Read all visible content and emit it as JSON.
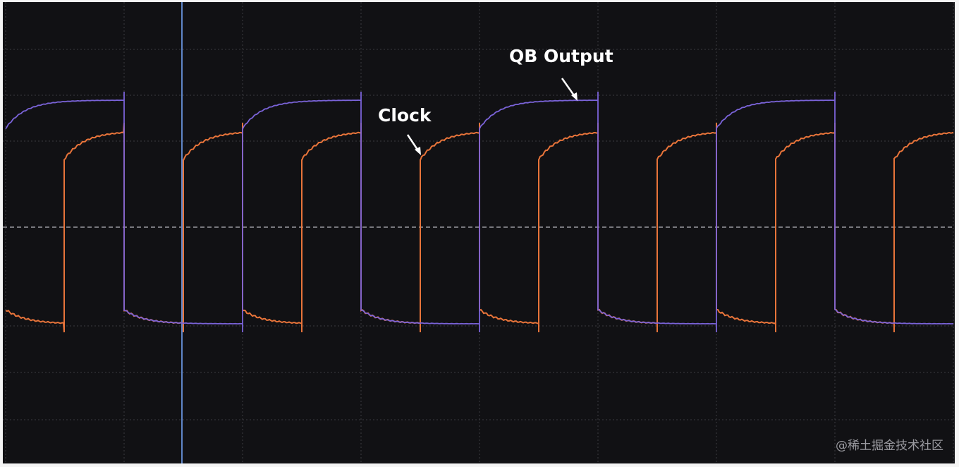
{
  "annotations": {
    "qb_output": "QB Output",
    "clock": "Clock"
  },
  "watermark": "@稀土掘金技术社区"
}
